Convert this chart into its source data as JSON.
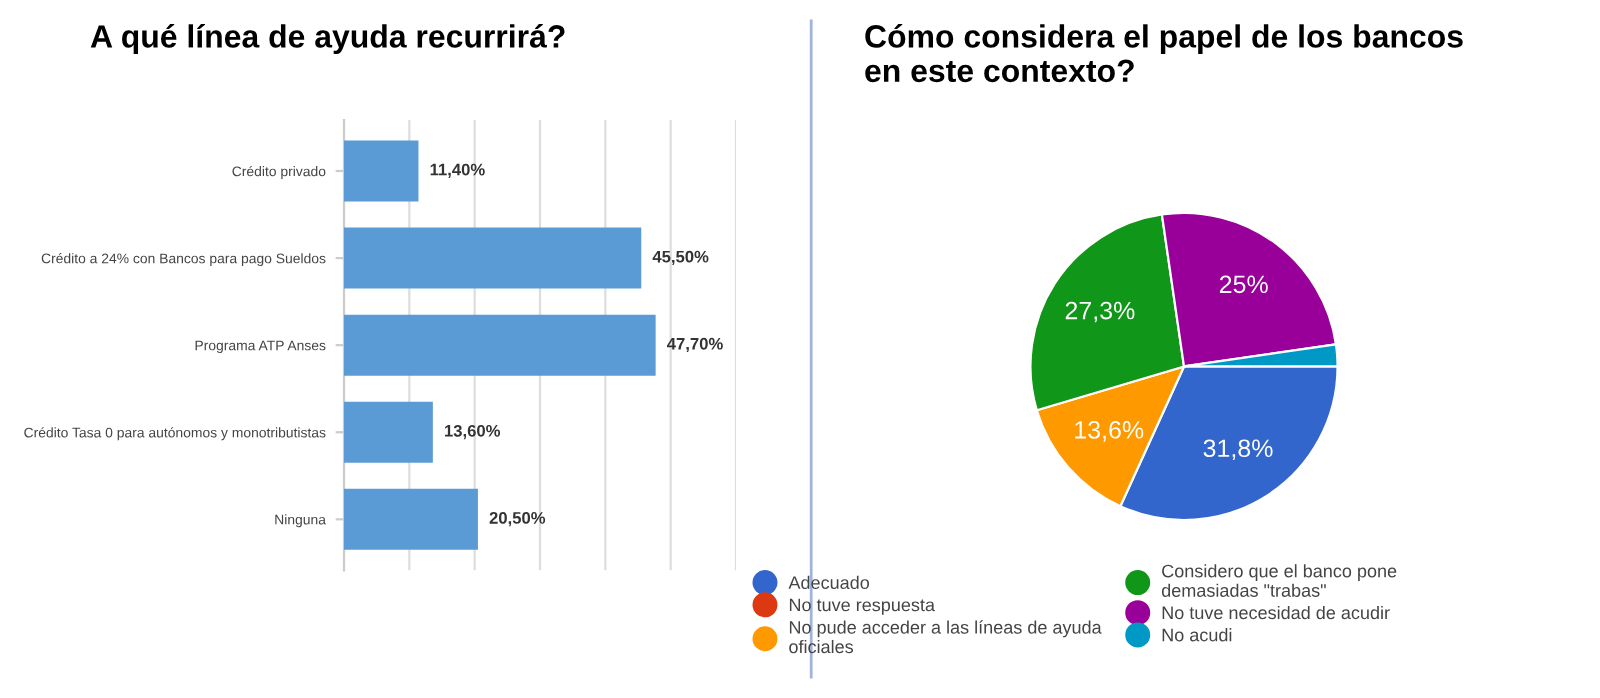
{
  "chart_data": [
    {
      "type": "bar",
      "orientation": "horizontal",
      "title": "A qué línea de ayuda recurrirá?",
      "categories": [
        "Crédito privado",
        "Crédito a 24% con Bancos para pago Sueldos",
        "Programa ATP Anses",
        "Crédito Tasa 0 para autónomos y monotributistas",
        "Ninguna"
      ],
      "values": [
        11.4,
        45.5,
        47.7,
        13.6,
        20.5
      ],
      "value_labels": [
        "11,40%",
        "45,50%",
        "47,70%",
        "13,60%",
        "20,50%"
      ],
      "color": "#5b9bd5",
      "xlim": [
        0,
        60
      ],
      "xticks": [
        {
          "value": 0,
          "label": null
        },
        {
          "value": 10,
          "label": null
        },
        {
          "value": 20,
          "label": null
        },
        {
          "value": 30,
          "label": null
        },
        {
          "value": 40,
          "label": null
        },
        {
          "value": 50,
          "label": null
        },
        {
          "value": 60,
          "label": null
        }
      ],
      "grid": "x",
      "tick_labels": "y"
    },
    {
      "type": "pie",
      "title": "Cómo considera el papel de los bancos\nen este contexto?",
      "categories": [
        "Adecuado",
        "No tuve respuesta",
        "No pude acceder a las líneas de ayuda\noficiales",
        "Considero que el banco pone\ndemasiadas \"trabas\"",
        "No tuve necesidad de acudir",
        "No acudi"
      ],
      "values": [
        31.8,
        0,
        13.6,
        27.3,
        25,
        2.3
      ],
      "value_labels": [
        "31,8%",
        null,
        "13,6%",
        "27,3%",
        "25%",
        null
      ],
      "colors": [
        "#3366cc",
        "#dc3912",
        "#ff9900",
        "#109618",
        "#990099",
        "#0099c6"
      ],
      "legend": "bottom"
    }
  ]
}
